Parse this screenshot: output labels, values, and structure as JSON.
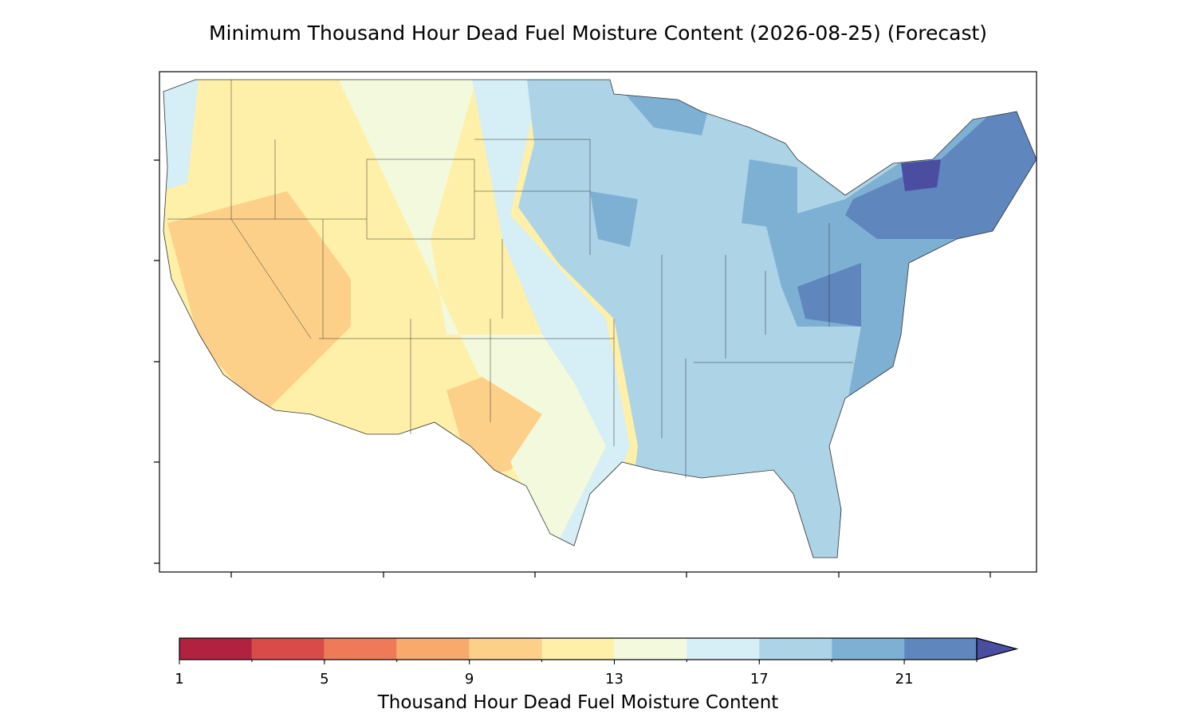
{
  "title": "Minimum Thousand Hour Dead Fuel Moisture Content (2026-08-25) (Forecast)",
  "colorbar": {
    "label": "Thousand Hour Dead Fuel Moisture Content",
    "levels": [
      1,
      3,
      5,
      7,
      9,
      11,
      13,
      15,
      17,
      19,
      21,
      23
    ],
    "colors": [
      "#b2213f",
      "#d84b48",
      "#ef7a5a",
      "#f9a96b",
      "#fdd08a",
      "#fef0a8",
      "#f3f9dc",
      "#d6eef5",
      "#acd3e6",
      "#7eb0d4",
      "#5f86bd"
    ],
    "extend_color": "#4a4da0",
    "ticks": [
      1,
      5,
      9,
      13,
      17,
      21
    ]
  }
}
